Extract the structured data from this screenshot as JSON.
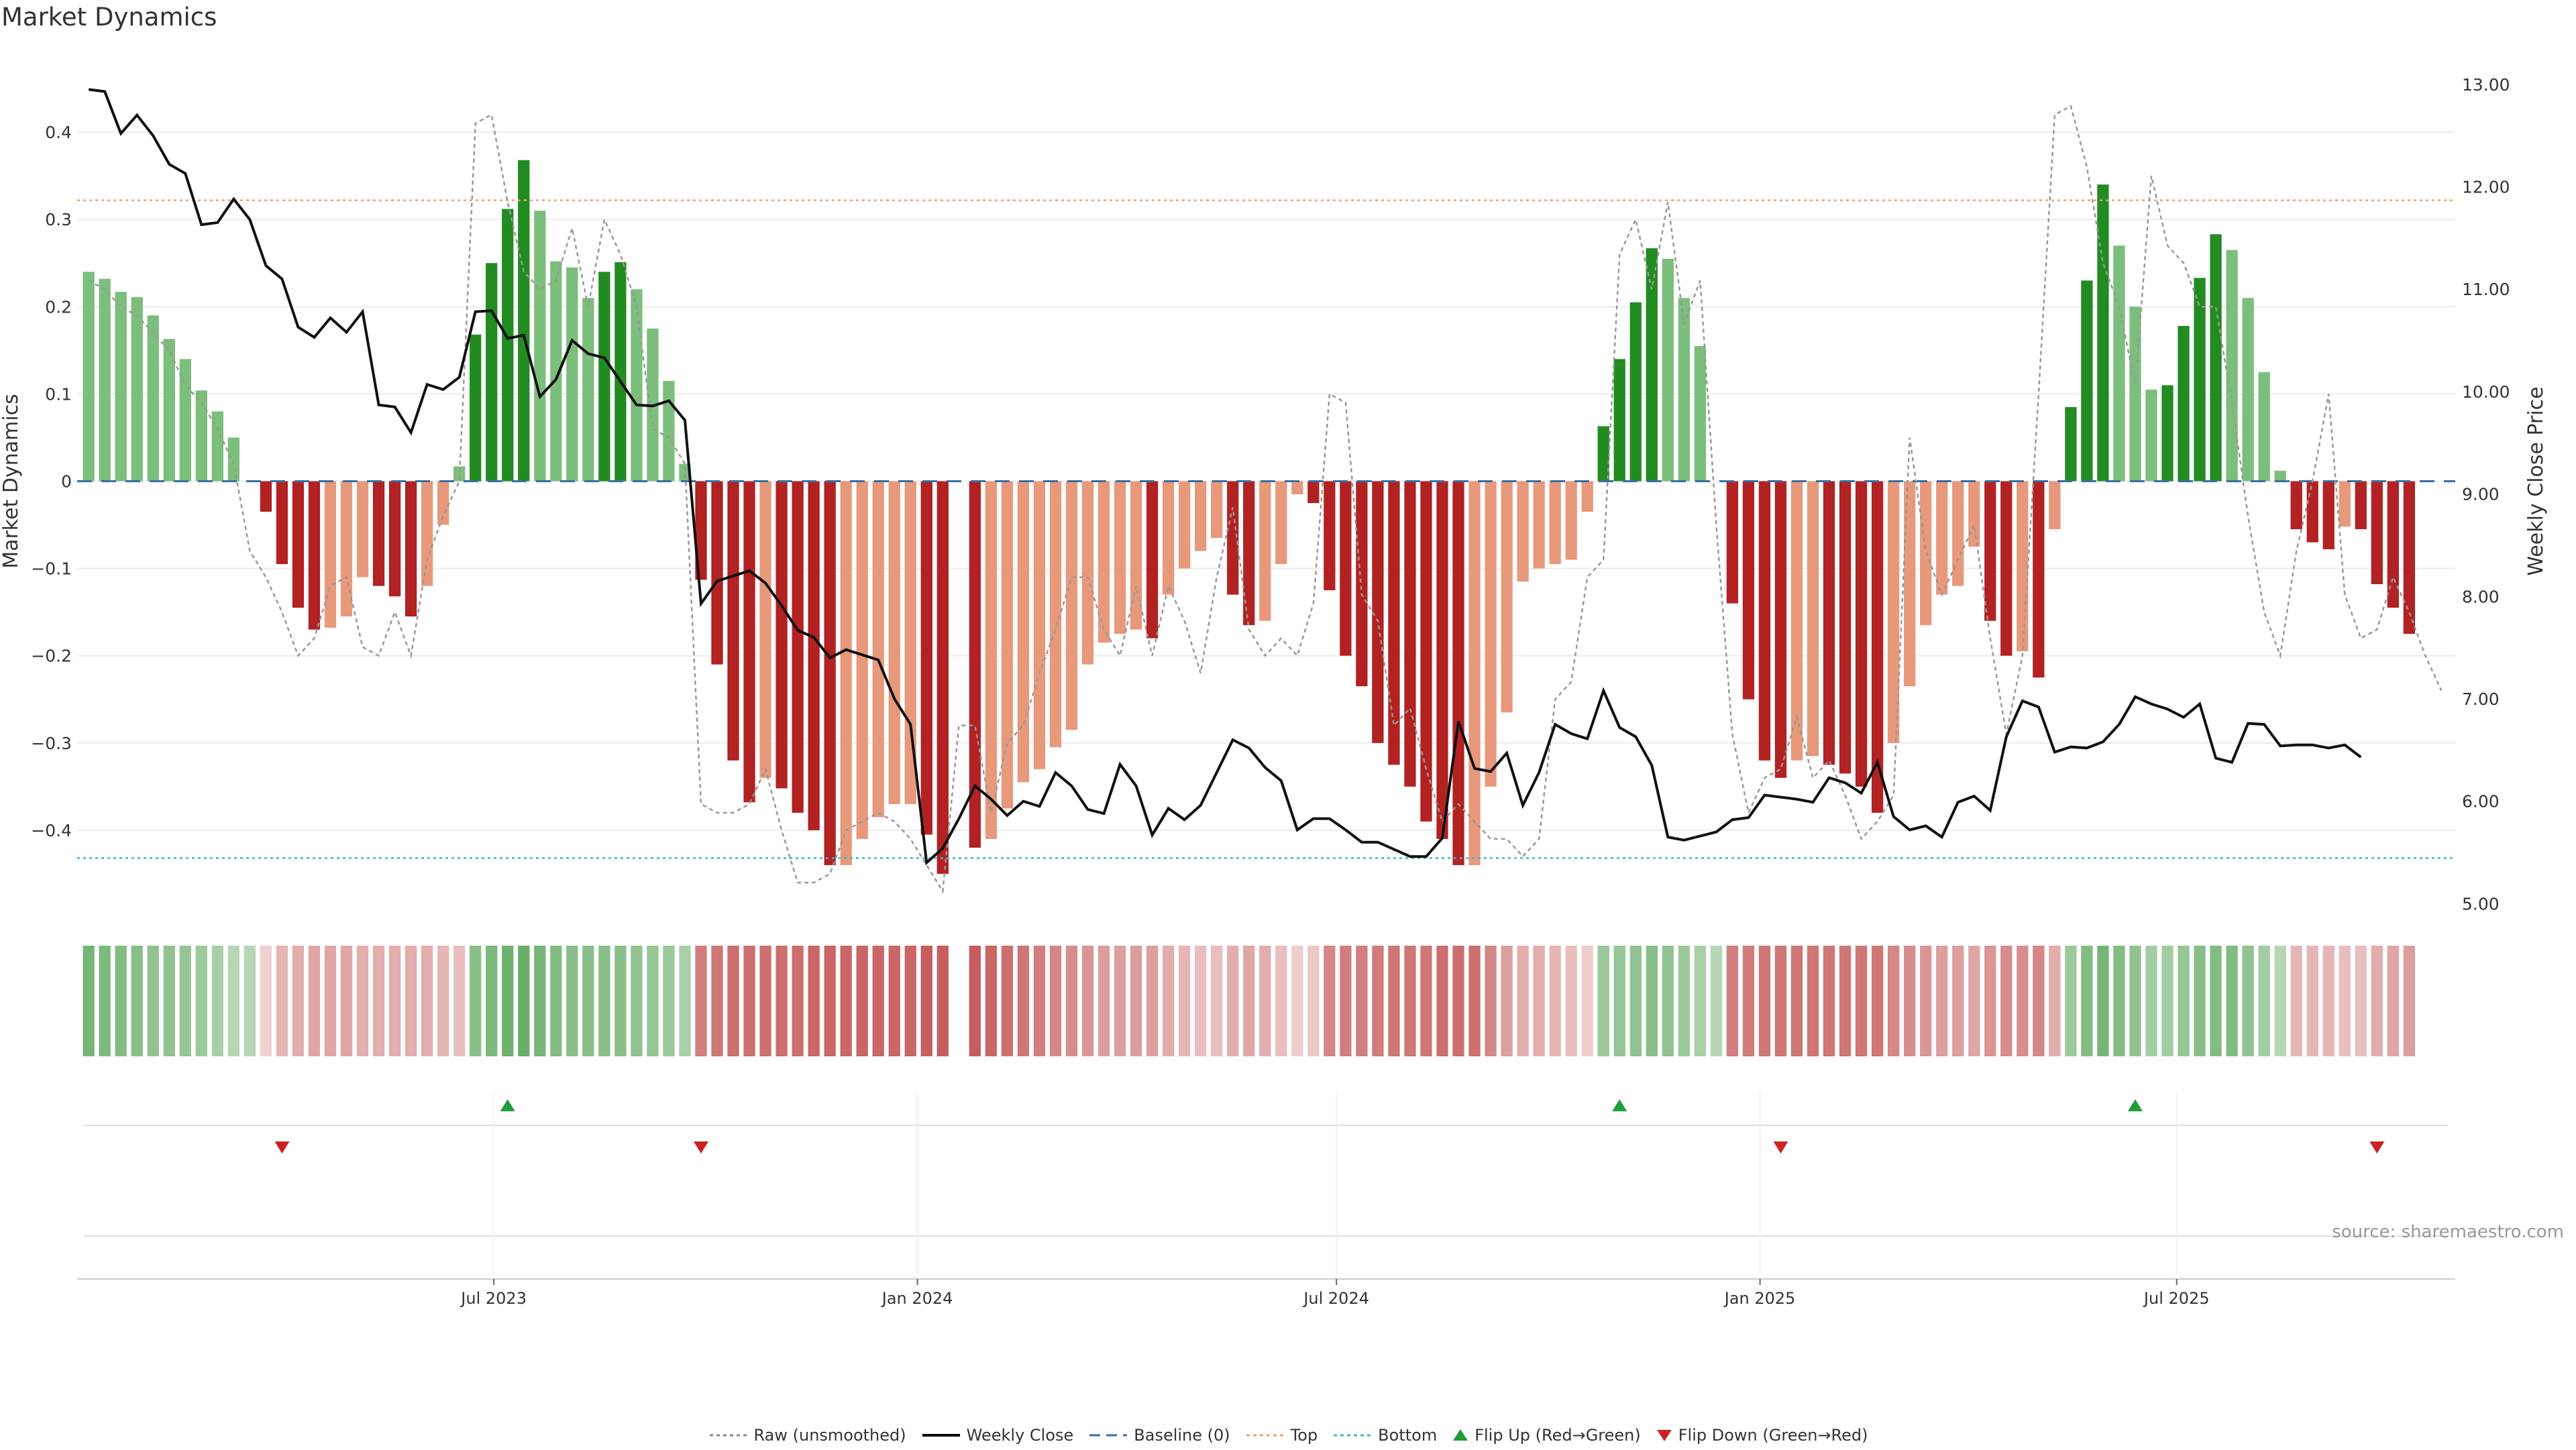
{
  "chart_data": {
    "type": "bar",
    "title": "Market Dynamics",
    "ylabel": "Market Dynamics",
    "y2label": "Weekly Close Price",
    "ylim": [
      -0.49,
      0.49
    ],
    "y2lim": [
      4.95,
      13.3
    ],
    "xlim": [
      "2023-01-01",
      "2025-10-30"
    ],
    "x_ticks": [
      {
        "date": "2023-07-01",
        "label": "Jul 2023"
      },
      {
        "date": "2024-01-01",
        "label": "Jan 2024"
      },
      {
        "date": "2024-07-01",
        "label": "Jul 2024"
      },
      {
        "date": "2025-01-01",
        "label": "Jan 2025"
      },
      {
        "date": "2025-07-01",
        "label": "Jul 2025"
      }
    ],
    "y_ticks": [
      "0.4",
      "0.3",
      "0.2",
      "0.1",
      "0",
      "−0.1",
      "−0.2",
      "−0.3",
      "−0.4"
    ],
    "y2_ticks": [
      "13.00",
      "12.00",
      "11.00",
      "10.00",
      "9.00",
      "8.00",
      "7.00",
      "6.00",
      "5.00"
    ],
    "top_level": 0.322,
    "bottom_level": -0.432,
    "baseline": 0,
    "grid": true,
    "start_date": "2023-01-06",
    "week_step_days": 7,
    "series": [
      {
        "name": "Market Dynamics",
        "values": [
          0.24,
          0.232,
          0.217,
          0.211,
          0.19,
          0.163,
          0.14,
          0.104,
          0.08,
          0.05,
          0.0,
          -0.035,
          -0.095,
          -0.145,
          -0.17,
          -0.168,
          -0.155,
          -0.11,
          -0.12,
          -0.132,
          -0.155,
          -0.12,
          -0.05,
          0.017,
          0.168,
          0.25,
          0.312,
          0.368,
          0.31,
          0.252,
          0.245,
          0.21,
          0.24,
          0.251,
          0.22,
          0.175,
          0.115,
          0.02,
          -0.113,
          -0.21,
          -0.32,
          -0.368,
          -0.34,
          -0.352,
          -0.38,
          -0.4,
          -0.44,
          -0.44,
          -0.41,
          -0.385,
          -0.37,
          -0.37,
          -0.405,
          -0.45,
          0.0,
          -0.42,
          -0.41,
          -0.375,
          -0.345,
          -0.33,
          -0.305,
          -0.285,
          -0.21,
          -0.185,
          -0.175,
          -0.17,
          -0.18,
          -0.13,
          -0.1,
          -0.08,
          -0.065,
          -0.13,
          -0.165,
          -0.16,
          -0.095,
          -0.015,
          -0.025,
          -0.125,
          -0.2,
          -0.235,
          -0.3,
          -0.325,
          -0.35,
          -0.39,
          -0.41,
          -0.44,
          -0.44,
          -0.35,
          -0.265,
          -0.115,
          -0.1,
          -0.095,
          -0.09,
          -0.035,
          0.063,
          0.14,
          0.205,
          0.267,
          0.255,
          0.21,
          0.155,
          0.0,
          -0.14,
          -0.25,
          -0.32,
          -0.34,
          -0.32,
          -0.315,
          -0.325,
          -0.335,
          -0.35,
          -0.38,
          -0.3,
          -0.235,
          -0.165,
          -0.13,
          -0.12,
          -0.075,
          -0.16,
          -0.2,
          -0.195,
          -0.225,
          -0.055,
          0.085,
          0.23,
          0.34,
          0.27,
          0.2,
          0.105,
          0.11,
          0.178,
          0.233,
          0.283,
          0.265,
          0.21,
          0.125,
          0.012,
          -0.055,
          -0.07,
          -0.078,
          -0.052,
          -0.055,
          -0.118,
          -0.145,
          -0.175
        ]
      },
      {
        "name": "Raw (unsmoothed)",
        "values": [
          0.23,
          0.22,
          0.2,
          0.19,
          0.17,
          0.15,
          0.11,
          0.09,
          0.06,
          0.02,
          -0.08,
          -0.11,
          -0.15,
          -0.2,
          -0.18,
          -0.12,
          -0.11,
          -0.19,
          -0.2,
          -0.15,
          -0.2,
          -0.09,
          -0.04,
          0.0,
          0.41,
          0.42,
          0.32,
          0.24,
          0.22,
          0.23,
          0.29,
          0.2,
          0.3,
          0.26,
          0.2,
          0.06,
          0.05,
          0.02,
          -0.37,
          -0.38,
          -0.38,
          -0.37,
          -0.33,
          -0.4,
          -0.46,
          -0.46,
          -0.45,
          -0.4,
          -0.39,
          -0.38,
          -0.39,
          -0.41,
          -0.44,
          -0.47,
          -0.28,
          -0.28,
          -0.38,
          -0.3,
          -0.28,
          -0.22,
          -0.17,
          -0.11,
          -0.11,
          -0.17,
          -0.2,
          -0.12,
          -0.2,
          -0.12,
          -0.16,
          -0.22,
          -0.11,
          -0.03,
          -0.17,
          -0.2,
          -0.18,
          -0.2,
          -0.14,
          0.1,
          0.09,
          -0.13,
          -0.16,
          -0.28,
          -0.26,
          -0.33,
          -0.39,
          -0.37,
          -0.39,
          -0.41,
          -0.41,
          -0.43,
          -0.41,
          -0.25,
          -0.23,
          -0.11,
          -0.09,
          0.26,
          0.3,
          0.22,
          0.32,
          0.18,
          0.23,
          -0.05,
          -0.29,
          -0.38,
          -0.34,
          -0.33,
          -0.27,
          -0.34,
          -0.32,
          -0.36,
          -0.41,
          -0.39,
          -0.36,
          0.05,
          -0.08,
          -0.13,
          -0.09,
          -0.05,
          -0.18,
          -0.29,
          -0.2,
          0.1,
          0.42,
          0.43,
          0.36,
          0.25,
          0.2,
          0.11,
          0.35,
          0.27,
          0.25,
          0.2,
          0.2,
          0.09,
          -0.04,
          -0.15,
          -0.2,
          -0.08,
          0.0,
          0.1,
          -0.13,
          -0.18,
          -0.17,
          -0.11,
          -0.15,
          -0.2,
          -0.24
        ]
      },
      {
        "name": "Weekly Close",
        "axis": "right",
        "values": [
          12.95,
          12.93,
          12.52,
          12.7,
          12.5,
          12.22,
          12.13,
          11.63,
          11.65,
          11.88,
          11.68,
          11.23,
          11.1,
          10.63,
          10.53,
          10.72,
          10.58,
          10.78,
          9.87,
          9.85,
          9.6,
          10.07,
          10.02,
          10.14,
          10.78,
          10.79,
          10.52,
          10.55,
          9.95,
          10.12,
          10.5,
          10.37,
          10.33,
          10.1,
          9.87,
          9.86,
          9.91,
          9.72,
          7.93,
          8.15,
          8.2,
          8.25,
          8.13,
          7.91,
          7.67,
          7.6,
          7.4,
          7.48,
          7.43,
          7.38,
          7.0,
          6.75,
          5.4,
          5.54,
          5.83,
          6.15,
          6.02,
          5.86,
          6.0,
          5.95,
          6.28,
          6.15,
          5.92,
          5.88,
          6.36,
          6.15,
          5.67,
          5.93,
          5.82,
          5.96,
          6.28,
          6.6,
          6.52,
          6.33,
          6.2,
          5.72,
          5.83,
          5.83,
          5.72,
          5.6,
          5.6,
          5.53,
          5.46,
          5.46,
          5.64,
          6.78,
          6.32,
          6.29,
          6.47,
          5.96,
          6.28,
          6.75,
          6.66,
          6.61,
          7.08,
          6.72,
          6.63,
          6.35,
          5.65,
          5.62,
          5.66,
          5.7,
          5.82,
          5.84,
          6.06,
          6.04,
          6.02,
          5.99,
          6.23,
          6.18,
          6.08,
          6.38,
          5.85,
          5.72,
          5.76,
          5.65,
          5.99,
          6.05,
          5.91,
          6.63,
          6.98,
          6.92,
          6.48,
          6.53,
          6.52,
          6.58,
          6.75,
          7.02,
          6.95,
          6.9,
          6.82,
          6.95,
          6.42,
          6.38,
          6.76,
          6.75,
          6.54,
          6.55,
          6.55,
          6.52,
          6.55,
          6.43
        ]
      }
    ],
    "signal_strip": {
      "values": [
        0.7,
        0.65,
        0.6,
        0.55,
        0.5,
        0.5,
        0.45,
        0.4,
        0.3,
        0.2,
        0.2,
        -0.08,
        -0.25,
        -0.3,
        -0.35,
        -0.35,
        -0.35,
        -0.3,
        -0.3,
        -0.3,
        -0.3,
        -0.3,
        -0.25,
        -0.2,
        0.55,
        0.65,
        0.75,
        0.8,
        0.7,
        0.6,
        0.55,
        0.55,
        0.55,
        0.55,
        0.5,
        0.45,
        0.4,
        0.3,
        -0.6,
        -0.65,
        -0.7,
        -0.7,
        -0.7,
        -0.7,
        -0.7,
        -0.75,
        -0.75,
        -0.75,
        -0.75,
        -0.75,
        -0.75,
        -0.75,
        -0.8,
        -0.8,
        -0.8,
        -0.8,
        -0.75,
        -0.7,
        -0.65,
        -0.6,
        -0.55,
        -0.5,
        -0.45,
        -0.4,
        -0.4,
        -0.4,
        -0.4,
        -0.3,
        -0.25,
        -0.2,
        -0.2,
        -0.3,
        -0.35,
        -0.3,
        -0.2,
        -0.1,
        -0.15,
        -0.55,
        -0.6,
        -0.6,
        -0.62,
        -0.65,
        -0.65,
        -0.65,
        -0.7,
        -0.7,
        -0.7,
        -0.55,
        -0.4,
        -0.3,
        -0.3,
        -0.25,
        -0.2,
        -0.1,
        0.4,
        0.45,
        0.5,
        0.55,
        0.5,
        0.4,
        0.3,
        0.2,
        -0.6,
        -0.62,
        -0.65,
        -0.65,
        -0.65,
        -0.65,
        -0.65,
        -0.65,
        -0.65,
        -0.65,
        -0.55,
        -0.5,
        -0.45,
        -0.4,
        -0.4,
        -0.35,
        -0.45,
        -0.5,
        -0.5,
        -0.55,
        -0.3,
        0.4,
        0.6,
        0.7,
        0.6,
        0.5,
        0.35,
        0.35,
        0.45,
        0.55,
        0.6,
        0.6,
        0.5,
        0.35,
        0.2,
        -0.25,
        -0.25,
        -0.25,
        -0.2,
        -0.2,
        -0.3,
        -0.35,
        -0.4
      ],
      "gap_index": 54
    },
    "flips": {
      "up_dates": [
        "2023-07-07",
        "2024-11-01",
        "2025-06-13"
      ],
      "down_dates": [
        "2023-03-31",
        "2023-09-29",
        "2025-01-10",
        "2025-09-26"
      ]
    },
    "legend": {
      "placement": "bottom-center",
      "items": [
        {
          "label": "Raw (unsmoothed)",
          "kind": "dotted",
          "color": "#888888"
        },
        {
          "label": "Weekly Close",
          "kind": "solid",
          "color": "#000000"
        },
        {
          "label": "Baseline (0)",
          "kind": "dashed",
          "color": "#3a6f9f"
        },
        {
          "label": "Top",
          "kind": "dotted",
          "color": "#f0a070"
        },
        {
          "label": "Bottom",
          "kind": "dotted",
          "color": "#3cb8c8"
        },
        {
          "label": "Flip Up (Red→Green)",
          "kind": "tri-up",
          "color": "#1f9e3a"
        },
        {
          "label": "Flip Down (Green→Red)",
          "kind": "tri-down",
          "color": "#cc2222"
        }
      ]
    },
    "colors": {
      "green_strong": "#228b22",
      "green_light": "#7cbe7c",
      "red_strong": "#b22222",
      "red_light": "#e8997b"
    }
  },
  "source": "source: sharemaestro.com"
}
